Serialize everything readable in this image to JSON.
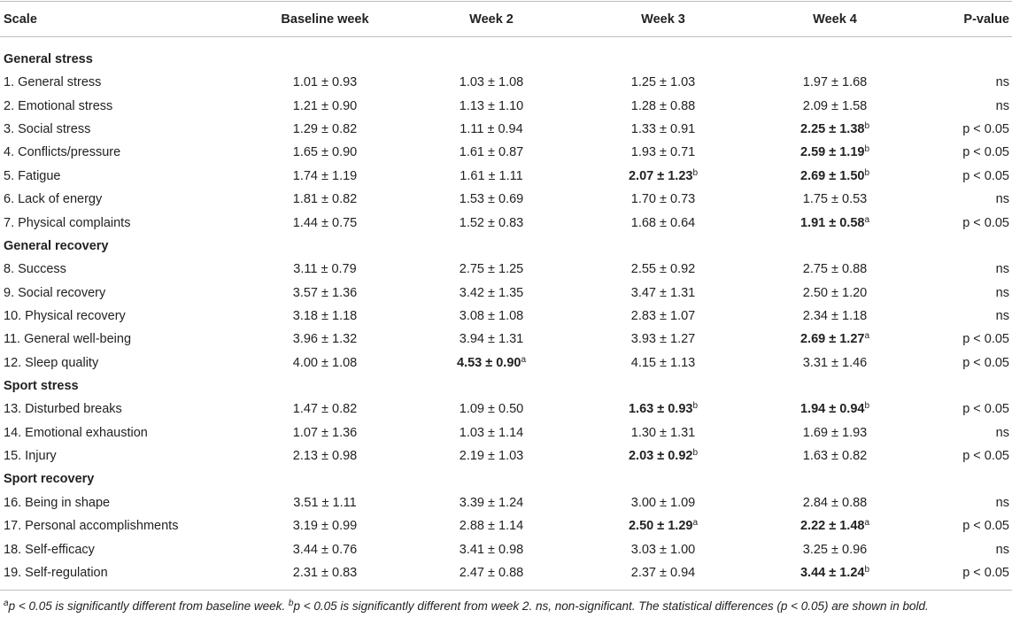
{
  "table": {
    "header": [
      "Scale",
      "Baseline week",
      "Week 2",
      "Week 3",
      "Week 4",
      "P-value"
    ],
    "groups": [
      {
        "title": "General stress",
        "rows": [
          {
            "scale": "1. General stress",
            "cells": [
              "1.01 ± 0.93",
              "1.03 ± 1.08",
              "1.25 ± 1.03",
              "1.97 ± 1.68",
              "ns"
            ]
          },
          {
            "scale": "2. Emotional stress",
            "cells": [
              "1.21 ± 0.90",
              "1.13 ± 1.10",
              "1.28 ± 0.88",
              "2.09 ± 1.58",
              "ns"
            ]
          },
          {
            "scale": "3. Social stress",
            "cells": [
              "1.29 ± 0.82",
              "1.11 ± 0.94",
              "1.33 ± 0.91",
              {
                "text": "2.25 ± 1.38",
                "sup": "b",
                "bold": true
              },
              "p < 0.05"
            ]
          },
          {
            "scale": "4. Conflicts/pressure",
            "cells": [
              "1.65 ± 0.90",
              "1.61 ± 0.87",
              "1.93 ± 0.71",
              {
                "text": "2.59 ± 1.19",
                "sup": "b",
                "bold": true
              },
              "p < 0.05"
            ]
          },
          {
            "scale": "5. Fatigue",
            "cells": [
              "1.74 ± 1.19",
              "1.61 ± 1.11",
              {
                "text": "2.07 ± 1.23",
                "sup": "b",
                "bold": true
              },
              {
                "text": "2.69 ± 1.50",
                "sup": "b",
                "bold": true
              },
              "p < 0.05"
            ]
          },
          {
            "scale": "6. Lack of energy",
            "cells": [
              "1.81 ± 0.82",
              "1.53 ± 0.69",
              "1.70 ± 0.73",
              "1.75 ± 0.53",
              "ns"
            ]
          },
          {
            "scale": "7. Physical complaints",
            "cells": [
              "1.44 ± 0.75",
              "1.52 ± 0.83",
              "1.68 ± 0.64",
              {
                "text": "1.91 ± 0.58",
                "sup": "a",
                "bold": true
              },
              "p < 0.05"
            ]
          }
        ]
      },
      {
        "title": "General recovery",
        "rows": [
          {
            "scale": "8. Success",
            "cells": [
              "3.11 ± 0.79",
              "2.75 ± 1.25",
              "2.55 ± 0.92",
              "2.75 ± 0.88",
              "ns"
            ]
          },
          {
            "scale": "9. Social recovery",
            "cells": [
              "3.57 ± 1.36",
              "3.42 ± 1.35",
              "3.47 ± 1.31",
              "2.50 ± 1.20",
              "ns"
            ]
          },
          {
            "scale": "10. Physical recovery",
            "cells": [
              "3.18 ± 1.18",
              "3.08 ± 1.08",
              "2.83 ± 1.07",
              "2.34 ± 1.18",
              "ns"
            ]
          },
          {
            "scale": "11. General well-being",
            "cells": [
              "3.96 ± 1.32",
              "3.94 ± 1.31",
              "3.93 ± 1.27",
              {
                "text": "2.69 ± 1.27",
                "sup": "a",
                "bold": true
              },
              "p < 0.05"
            ]
          },
          {
            "scale": "12. Sleep quality",
            "cells": [
              "4.00 ± 1.08",
              {
                "text": "4.53 ± 0.90",
                "sup": "a",
                "bold": true
              },
              "4.15 ± 1.13",
              "3.31 ± 1.46",
              "p < 0.05"
            ]
          }
        ]
      },
      {
        "title": "Sport stress",
        "rows": [
          {
            "scale": "13. Disturbed breaks",
            "cells": [
              "1.47 ± 0.82",
              "1.09 ± 0.50",
              {
                "text": "1.63 ± 0.93",
                "sup": "b",
                "bold": true
              },
              {
                "text": "1.94 ± 0.94",
                "sup": "b",
                "bold": true
              },
              "p < 0.05"
            ]
          },
          {
            "scale": "14. Emotional exhaustion",
            "cells": [
              "1.07 ± 1.36",
              "1.03 ± 1.14",
              "1.30 ± 1.31",
              "1.69 ± 1.93",
              "ns"
            ]
          },
          {
            "scale": "15. Injury",
            "cells": [
              "2.13 ± 0.98",
              "2.19 ± 1.03",
              {
                "text": "2.03 ± 0.92",
                "sup": "b",
                "bold": true
              },
              "1.63 ± 0.82",
              "p < 0.05"
            ]
          }
        ]
      },
      {
        "title": "Sport recovery",
        "rows": [
          {
            "scale": "16. Being in shape",
            "cells": [
              "3.51 ± 1.11",
              "3.39 ± 1.24",
              "3.00 ± 1.09",
              "2.84 ± 0.88",
              "ns"
            ]
          },
          {
            "scale": "17. Personal accomplishments",
            "cells": [
              "3.19 ± 0.99",
              "2.88 ± 1.14",
              {
                "text": "2.50 ± 1.29",
                "sup": "a",
                "bold": true
              },
              {
                "text": "2.22 ± 1.48",
                "sup": "a",
                "bold": true
              },
              "p < 0.05"
            ]
          },
          {
            "scale": "18. Self-efficacy",
            "cells": [
              "3.44 ± 0.76",
              "3.41 ± 0.98",
              "3.03 ± 1.00",
              "3.25 ± 0.96",
              "ns"
            ]
          },
          {
            "scale": "19. Self-regulation",
            "cells": [
              "2.31 ± 0.83",
              "2.47 ± 0.88",
              "2.37 ± 0.94",
              {
                "text": "3.44 ± 1.24",
                "sup": "b",
                "bold": true
              },
              "p < 0.05"
            ]
          }
        ]
      }
    ],
    "notes": [
      {
        "mark": "a",
        "text": "p < 0.05 is significantly different from baseline week."
      },
      {
        "mark": "b",
        "text": "p < 0.05 is significantly different from week 2. ns, non-significant. The statistical differences (p < 0.05) are shown in bold."
      }
    ]
  }
}
